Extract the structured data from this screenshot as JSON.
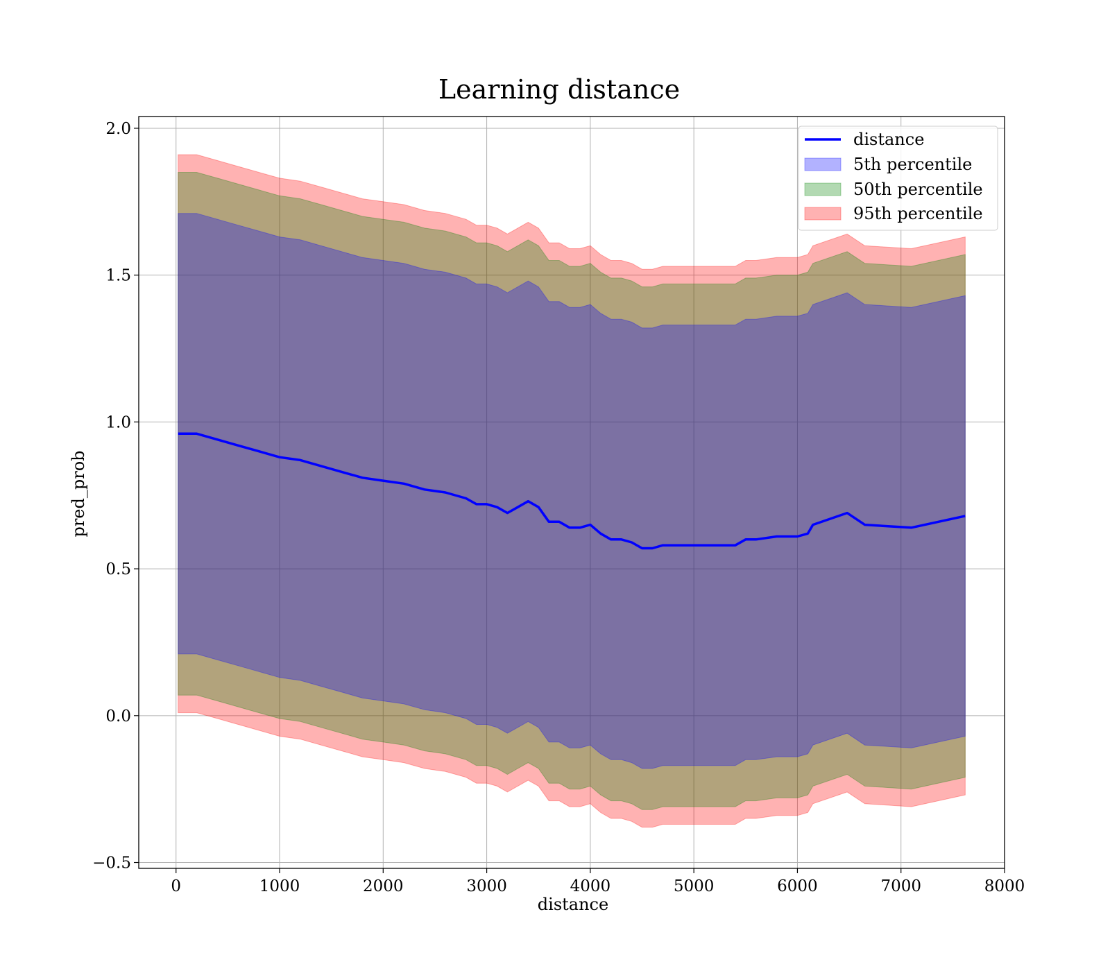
{
  "chart_data": {
    "type": "line",
    "title": "Learning distance",
    "xlabel": "distance",
    "ylabel": "pred_prob",
    "xlim": [
      -360,
      8000
    ],
    "ylim": [
      -0.52,
      2.04
    ],
    "xticks": [
      0,
      1000,
      2000,
      3000,
      4000,
      5000,
      6000,
      7000,
      8000
    ],
    "xtick_labels": [
      "0",
      "1000",
      "2000",
      "3000",
      "4000",
      "5000",
      "6000",
      "7000",
      "8000"
    ],
    "yticks": [
      -0.5,
      0.0,
      0.5,
      1.0,
      1.5,
      2.0
    ],
    "ytick_labels": [
      "−0.5",
      "0.0",
      "0.5",
      "1.0",
      "1.5",
      "2.0"
    ],
    "grid": true,
    "legend_position": "top-right",
    "legend": [
      "distance",
      "5th percentile",
      "50th percentile",
      "95th percentile"
    ],
    "colors": {
      "line": "#0000ff",
      "band_5": "#0000ff",
      "band_50": "#008000",
      "band_95": "#ff0000"
    },
    "x": [
      20,
      200,
      400,
      600,
      800,
      1000,
      1200,
      1400,
      1600,
      1800,
      2000,
      2200,
      2400,
      2600,
      2800,
      2900,
      3000,
      3100,
      3200,
      3300,
      3400,
      3500,
      3600,
      3700,
      3800,
      3900,
      4000,
      4100,
      4200,
      4300,
      4400,
      4500,
      4600,
      4700,
      4800,
      4900,
      5000,
      5100,
      5200,
      5300,
      5400,
      5500,
      5600,
      5800,
      6000,
      6100,
      6150,
      6480,
      6650,
      7100,
      7620
    ],
    "series": [
      {
        "name": "distance",
        "values": [
          0.96,
          0.96,
          0.94,
          0.92,
          0.9,
          0.88,
          0.87,
          0.85,
          0.83,
          0.81,
          0.8,
          0.79,
          0.77,
          0.76,
          0.74,
          0.72,
          0.72,
          0.71,
          0.69,
          0.71,
          0.73,
          0.71,
          0.66,
          0.66,
          0.64,
          0.64,
          0.65,
          0.62,
          0.6,
          0.6,
          0.59,
          0.57,
          0.57,
          0.58,
          0.58,
          0.58,
          0.58,
          0.58,
          0.58,
          0.58,
          0.58,
          0.6,
          0.6,
          0.61,
          0.61,
          0.62,
          0.65,
          0.69,
          0.65,
          0.64,
          0.68
        ]
      },
      {
        "name": "5th percentile",
        "values": [
          0.96,
          0.96,
          0.94,
          0.92,
          0.9,
          0.88,
          0.87,
          0.85,
          0.83,
          0.81,
          0.8,
          0.79,
          0.77,
          0.76,
          0.74,
          0.72,
          0.72,
          0.71,
          0.69,
          0.71,
          0.73,
          0.71,
          0.66,
          0.66,
          0.64,
          0.64,
          0.65,
          0.62,
          0.6,
          0.6,
          0.59,
          0.57,
          0.57,
          0.58,
          0.58,
          0.58,
          0.58,
          0.58,
          0.58,
          0.58,
          0.58,
          0.6,
          0.6,
          0.61,
          0.61,
          0.62,
          0.65,
          0.69,
          0.65,
          0.64,
          0.68
        ],
        "half_width": 0.75
      },
      {
        "name": "50th percentile",
        "values": [
          0.96,
          0.96,
          0.94,
          0.92,
          0.9,
          0.88,
          0.87,
          0.85,
          0.83,
          0.81,
          0.8,
          0.79,
          0.77,
          0.76,
          0.74,
          0.72,
          0.72,
          0.71,
          0.69,
          0.71,
          0.73,
          0.71,
          0.66,
          0.66,
          0.64,
          0.64,
          0.65,
          0.62,
          0.6,
          0.6,
          0.59,
          0.57,
          0.57,
          0.58,
          0.58,
          0.58,
          0.58,
          0.58,
          0.58,
          0.58,
          0.58,
          0.6,
          0.6,
          0.61,
          0.61,
          0.62,
          0.65,
          0.69,
          0.65,
          0.64,
          0.68
        ],
        "half_width": 0.89
      },
      {
        "name": "95th percentile",
        "values": [
          0.96,
          0.96,
          0.94,
          0.92,
          0.9,
          0.88,
          0.87,
          0.85,
          0.83,
          0.81,
          0.8,
          0.79,
          0.77,
          0.76,
          0.74,
          0.72,
          0.72,
          0.71,
          0.69,
          0.71,
          0.73,
          0.71,
          0.66,
          0.66,
          0.64,
          0.64,
          0.65,
          0.62,
          0.6,
          0.6,
          0.59,
          0.57,
          0.57,
          0.58,
          0.58,
          0.58,
          0.58,
          0.58,
          0.58,
          0.58,
          0.58,
          0.6,
          0.6,
          0.61,
          0.61,
          0.62,
          0.65,
          0.69,
          0.65,
          0.64,
          0.68
        ],
        "half_width": 0.95
      }
    ]
  }
}
